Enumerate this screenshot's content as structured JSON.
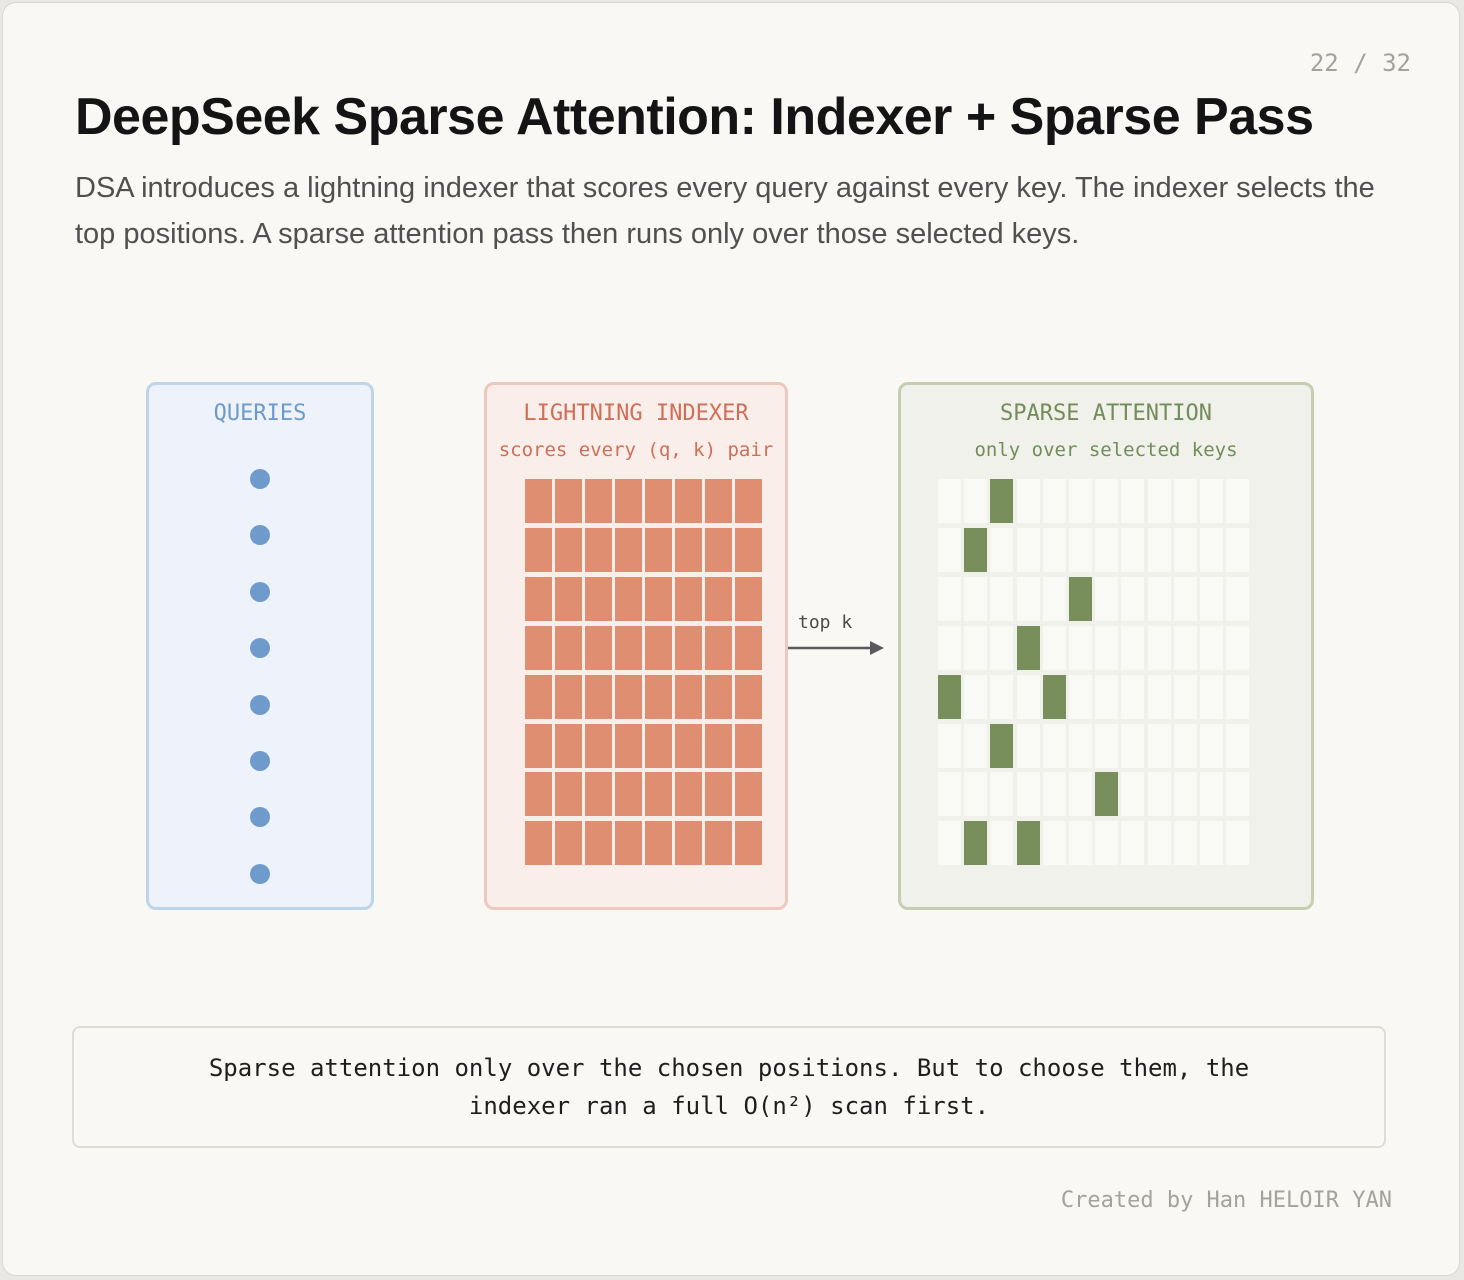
{
  "page_number": "22 / 32",
  "title": "DeepSeek Sparse Attention: Indexer + Sparse Pass",
  "subtitle": "DSA introduces a lightning indexer that scores every query against every key. The indexer selects the top positions. A sparse attention pass then runs only over those selected keys.",
  "queries_panel": {
    "title": "QUERIES",
    "query_count": 8,
    "color": "#6e9bcc"
  },
  "indexer_panel": {
    "title": "LIGHTNING INDEXER",
    "subtitle": "scores every (q, k) pair",
    "rows": 8,
    "cols": 8,
    "color": "#e08e72"
  },
  "arrow": {
    "label": "top k"
  },
  "sparse_panel": {
    "title": "SPARSE ATTENTION",
    "subtitle": "only over selected keys",
    "rows": 8,
    "cols": 12,
    "selected": [
      [
        2
      ],
      [
        1
      ],
      [
        5
      ],
      [
        3
      ],
      [
        0,
        4
      ],
      [
        2
      ],
      [
        6
      ],
      [
        1,
        3
      ]
    ],
    "color": "#798f5b"
  },
  "callout": {
    "text": "Sparse attention only over the chosen positions. But to choose them, the indexer ran a full O(n²) scan first."
  },
  "credit": "Created by Han HELOIR YAN"
}
